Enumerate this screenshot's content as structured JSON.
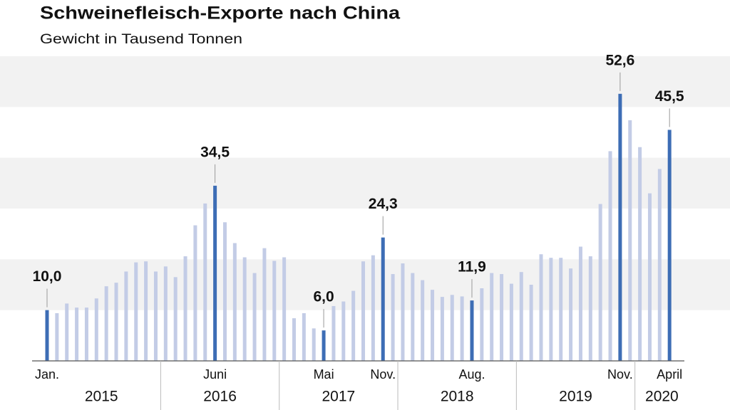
{
  "chart_data": {
    "type": "bar",
    "title": "Schweinefleisch-Exporte nach China",
    "subtitle": "Gewicht in Tausend Tonnen",
    "categories": [
      "Jan.",
      null,
      null,
      null,
      null,
      null,
      null,
      null,
      null,
      null,
      null,
      null,
      null,
      null,
      null,
      null,
      null,
      "Juni",
      null,
      null,
      null,
      null,
      null,
      null,
      null,
      null,
      null,
      null,
      "Mai",
      null,
      null,
      null,
      null,
      null,
      "Nov.",
      null,
      null,
      null,
      null,
      null,
      null,
      null,
      null,
      "Aug.",
      null,
      null,
      null,
      null,
      null,
      null,
      null,
      null,
      null,
      null,
      null,
      null,
      null,
      null,
      "Nov.",
      null,
      null,
      null,
      null,
      "April"
    ],
    "years": [
      "2015",
      "2016",
      "2017",
      "2018",
      "2019",
      "2020"
    ],
    "values": [
      10.0,
      9.4,
      11.3,
      10.5,
      10.5,
      12.3,
      14.7,
      15.4,
      17.6,
      19.4,
      19.6,
      17.6,
      18.6,
      16.5,
      20.6,
      26.7,
      31.0,
      34.5,
      27.3,
      23.2,
      20.4,
      17.3,
      22.2,
      19.7,
      20.4,
      8.4,
      9.4,
      6.4,
      6.0,
      10.8,
      11.7,
      13.8,
      19.6,
      20.8,
      24.3,
      17.1,
      19.2,
      17.3,
      15.9,
      14.0,
      12.6,
      13.0,
      12.7,
      11.9,
      14.3,
      17.3,
      17.1,
      15.2,
      17.5,
      15.0,
      21.0,
      20.3,
      20.3,
      18.2,
      22.5,
      20.6,
      30.9,
      41.3,
      52.6,
      47.4,
      42.1,
      33.0,
      37.8,
      45.5
    ],
    "value_labels": [
      "10,0",
      null,
      null,
      null,
      null,
      null,
      null,
      null,
      null,
      null,
      null,
      null,
      null,
      null,
      null,
      null,
      null,
      "34,5",
      null,
      null,
      null,
      null,
      null,
      null,
      null,
      null,
      null,
      null,
      "6,0",
      null,
      null,
      null,
      null,
      null,
      "24,3",
      null,
      null,
      null,
      null,
      null,
      null,
      null,
      null,
      "11,9",
      null,
      null,
      null,
      null,
      null,
      null,
      null,
      null,
      null,
      null,
      null,
      null,
      null,
      null,
      "52,6",
      null,
      null,
      null,
      null,
      "45,5"
    ],
    "color": "#c3cce6",
    "highlight_color": "#3d6db5",
    "ylim": [
      0,
      60
    ],
    "yticks": [
      0,
      10,
      20,
      30,
      40,
      50,
      60
    ],
    "grid": "bands"
  }
}
